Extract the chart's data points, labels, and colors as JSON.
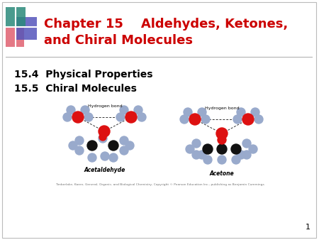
{
  "bg_color": "#ffffff",
  "border_color": "#bbbbbb",
  "title_line1": "Chapter 15    Aldehydes, Ketones,",
  "title_line2": "and Chiral Molecules",
  "title_color": "#cc0000",
  "title_fontsize": 13,
  "title_bold": true,
  "section1": "15.4  Physical Properties",
  "section2": "15.5  Chiral Molecules",
  "section_fontsize": 10,
  "section_bold": true,
  "section_color": "#000000",
  "page_number": "1",
  "page_number_color": "#000000",
  "page_number_fontsize": 8,
  "divider_color": "#aaaaaa",
  "logo_colors": {
    "pink_red": "#e06070",
    "blue_purple": "#5555bb",
    "teal_green": "#2a8a7a"
  },
  "molecule_label1": "Acetaldehyde",
  "molecule_label2": "Acetone",
  "molecule_sublabel1": "Hydrogen bond",
  "molecule_sublabel2": "Hydrogen bond",
  "caption_text": "Timberlake, Karen, General, Organic, and Biological Chemistry, Copyright © Pearson Education Inc., publishing as Benjamin Cummings"
}
